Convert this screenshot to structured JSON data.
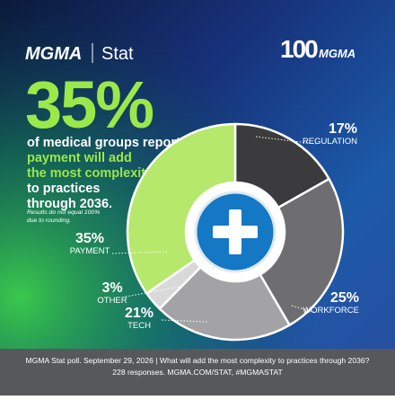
{
  "brand": {
    "name": "MGMA",
    "product": "Stat",
    "anniversary": "100",
    "anniversary_brand": "MGMA"
  },
  "headline": "35%",
  "description": [
    "of medical groups report",
    "payment will add",
    "the most complexity",
    "to practices",
    "through 2036."
  ],
  "note": [
    "Results do not equal 100%",
    "due to rounding."
  ],
  "footer": [
    "MGMA Stat poll. September 29, 2026  |  What will add the most complexity to practices through 2036?",
    "228 responses. MGMA.COM/STAT, #MGMASTAT"
  ],
  "chart_data": {
    "type": "donut",
    "categories": [
      "REGULATION",
      "WORKFORCE",
      "TECH",
      "OTHER",
      "PAYMENT"
    ],
    "values": [
      17,
      25,
      21,
      3,
      35
    ],
    "value_labels": [
      "17%",
      "25%",
      "21%",
      "3%",
      "35%"
    ],
    "colors": [
      "#3b3b3d",
      "#6e6e70",
      "#a3a3a5",
      "#d9d9d9",
      "#b6e86c"
    ]
  }
}
